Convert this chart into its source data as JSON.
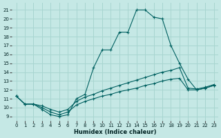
{
  "background_color": "#c5e8e5",
  "grid_color": "#a8d5d0",
  "line_color": "#006060",
  "xlabel": "Humidex (Indice chaleur)",
  "xlim": [
    -0.5,
    23.5
  ],
  "ylim": [
    8.5,
    21.8
  ],
  "ytick_vals": [
    9,
    10,
    11,
    12,
    13,
    14,
    15,
    16,
    17,
    18,
    19,
    20,
    21
  ],
  "xtick_vals": [
    0,
    1,
    2,
    3,
    4,
    5,
    6,
    7,
    8,
    9,
    10,
    11,
    12,
    13,
    14,
    15,
    16,
    17,
    18,
    19,
    20,
    21,
    22,
    23
  ],
  "series": [
    {
      "x": [
        0,
        1,
        2,
        3,
        4,
        5,
        6,
        7,
        8,
        9,
        10,
        11,
        12,
        13,
        14,
        15,
        16,
        17,
        18,
        19,
        20,
        21,
        22,
        23
      ],
      "y": [
        11.3,
        10.4,
        10.4,
        10.0,
        9.5,
        9.2,
        9.5,
        10.3,
        10.7,
        11.0,
        11.3,
        11.5,
        11.8,
        12.0,
        12.2,
        12.5,
        12.7,
        13.0,
        13.2,
        13.3,
        12.0,
        12.0,
        12.2,
        12.5
      ]
    },
    {
      "x": [
        0,
        1,
        2,
        3,
        4,
        5,
        6,
        7,
        8,
        9,
        10,
        11,
        12,
        13,
        14,
        15,
        16,
        17,
        18,
        19,
        20,
        21,
        22,
        23
      ],
      "y": [
        11.3,
        10.4,
        10.4,
        10.2,
        9.8,
        9.5,
        9.8,
        10.7,
        11.2,
        11.5,
        11.9,
        12.2,
        12.5,
        12.8,
        13.1,
        13.4,
        13.7,
        14.0,
        14.2,
        14.5,
        12.2,
        12.1,
        12.3,
        12.6
      ]
    },
    {
      "x": [
        0,
        1,
        2,
        3,
        4,
        5,
        6,
        7,
        8,
        9,
        10,
        11,
        12,
        13,
        14,
        15,
        16,
        17,
        18,
        19,
        20,
        21,
        22,
        23
      ],
      "y": [
        11.3,
        10.4,
        10.4,
        9.8,
        9.2,
        9.0,
        9.2,
        11.0,
        11.5,
        14.5,
        16.5,
        16.5,
        18.5,
        18.5,
        21.0,
        21.0,
        20.2,
        20.0,
        17.0,
        15.0,
        13.2,
        12.0,
        12.2,
        12.5
      ]
    }
  ]
}
